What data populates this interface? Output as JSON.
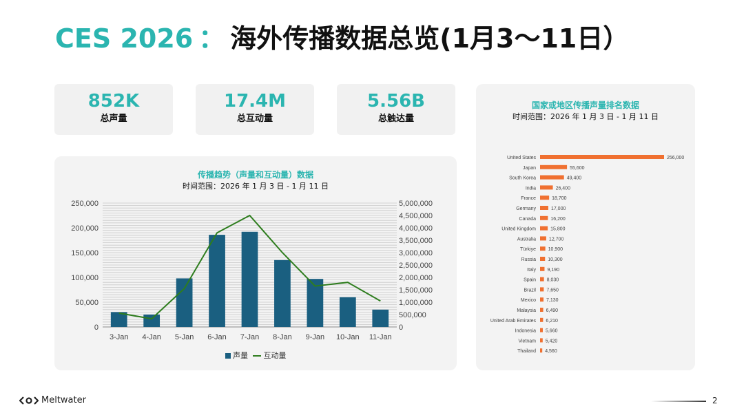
{
  "title": {
    "brand": "CES 2026",
    "separator": "：",
    "main": "海外传播数据总览(1月3～11日）"
  },
  "kpis": [
    {
      "value": "852K",
      "label": "总声量"
    },
    {
      "value": "17.4M",
      "label": "总互动量"
    },
    {
      "value": "5.56B",
      "label": "总触达量"
    }
  ],
  "colors": {
    "accent": "#2bb5b0",
    "bar_blue": "#1a5f80",
    "line_green": "#2e7d1e",
    "bar_orange": "#f07030"
  },
  "chart_data": [
    {
      "type": "bar",
      "title": "传播趋势（声量和互动量）数据",
      "subtitle": "时间范围：2026 年 1 月 3 日 - 1 月 11 日",
      "categories": [
        "3-Jan",
        "4-Jan",
        "5-Jan",
        "6-Jan",
        "7-Jan",
        "8-Jan",
        "9-Jan",
        "10-Jan",
        "11-Jan"
      ],
      "series": [
        {
          "name": "声量",
          "type": "bar",
          "axis": "left",
          "values": [
            30000,
            25000,
            98000,
            186000,
            192000,
            135000,
            97000,
            60000,
            35000
          ]
        },
        {
          "name": "互动量",
          "type": "line",
          "axis": "right",
          "values": [
            560000,
            330000,
            1550000,
            3800000,
            4500000,
            3000000,
            1650000,
            1800000,
            1050000
          ]
        }
      ],
      "ylim_left": [
        0,
        250000
      ],
      "yticks_left": [
        "0",
        "50,000",
        "100,000",
        "150,000",
        "200,000",
        "250,000"
      ],
      "ylim_right": [
        0,
        5000000
      ],
      "yticks_right": [
        "0",
        "500,000",
        "1,000,000",
        "1,500,000",
        "2,000,000",
        "2,500,000",
        "3,000,000",
        "3,500,000",
        "4,000,000",
        "4,500,000",
        "5,000,000"
      ],
      "grid": true,
      "legend": "bottom"
    },
    {
      "type": "bar",
      "orientation": "horizontal",
      "title": "国家或地区传播声量排名数据",
      "subtitle": "时间范围：2026 年 1 月 3 日 - 1 月 11 日",
      "categories": [
        "United States",
        "Japan",
        "South Korea",
        "India",
        "France",
        "Germany",
        "Canada",
        "United Kingdom",
        "Australia",
        "Türkiye",
        "Russia",
        "Italy",
        "Spain",
        "Brazil",
        "Mexico",
        "Malaysia",
        "United Arab Emirates",
        "Indonesia",
        "Vietnam",
        "Thailand"
      ],
      "values": [
        256000,
        55600,
        49400,
        26400,
        18700,
        17000,
        16200,
        15800,
        12700,
        10900,
        10300,
        9190,
        8030,
        7650,
        7130,
        6490,
        6210,
        5660,
        5420,
        4560
      ],
      "data_labels": [
        "256,000",
        "55,600",
        "49,400",
        "26,400",
        "18,700",
        "17,000",
        "16,200",
        "15,800",
        "12,700",
        "10,900",
        "10,300",
        "9,190",
        "8,030",
        "7,650",
        "7,130",
        "6,490",
        "6,210",
        "5,660",
        "5,420",
        "4,560"
      ],
      "xlim": [
        0,
        256000
      ]
    }
  ],
  "footer": {
    "logo": "Meltwater",
    "logo_icon": "meltwater-logo-icon",
    "page": "2"
  }
}
